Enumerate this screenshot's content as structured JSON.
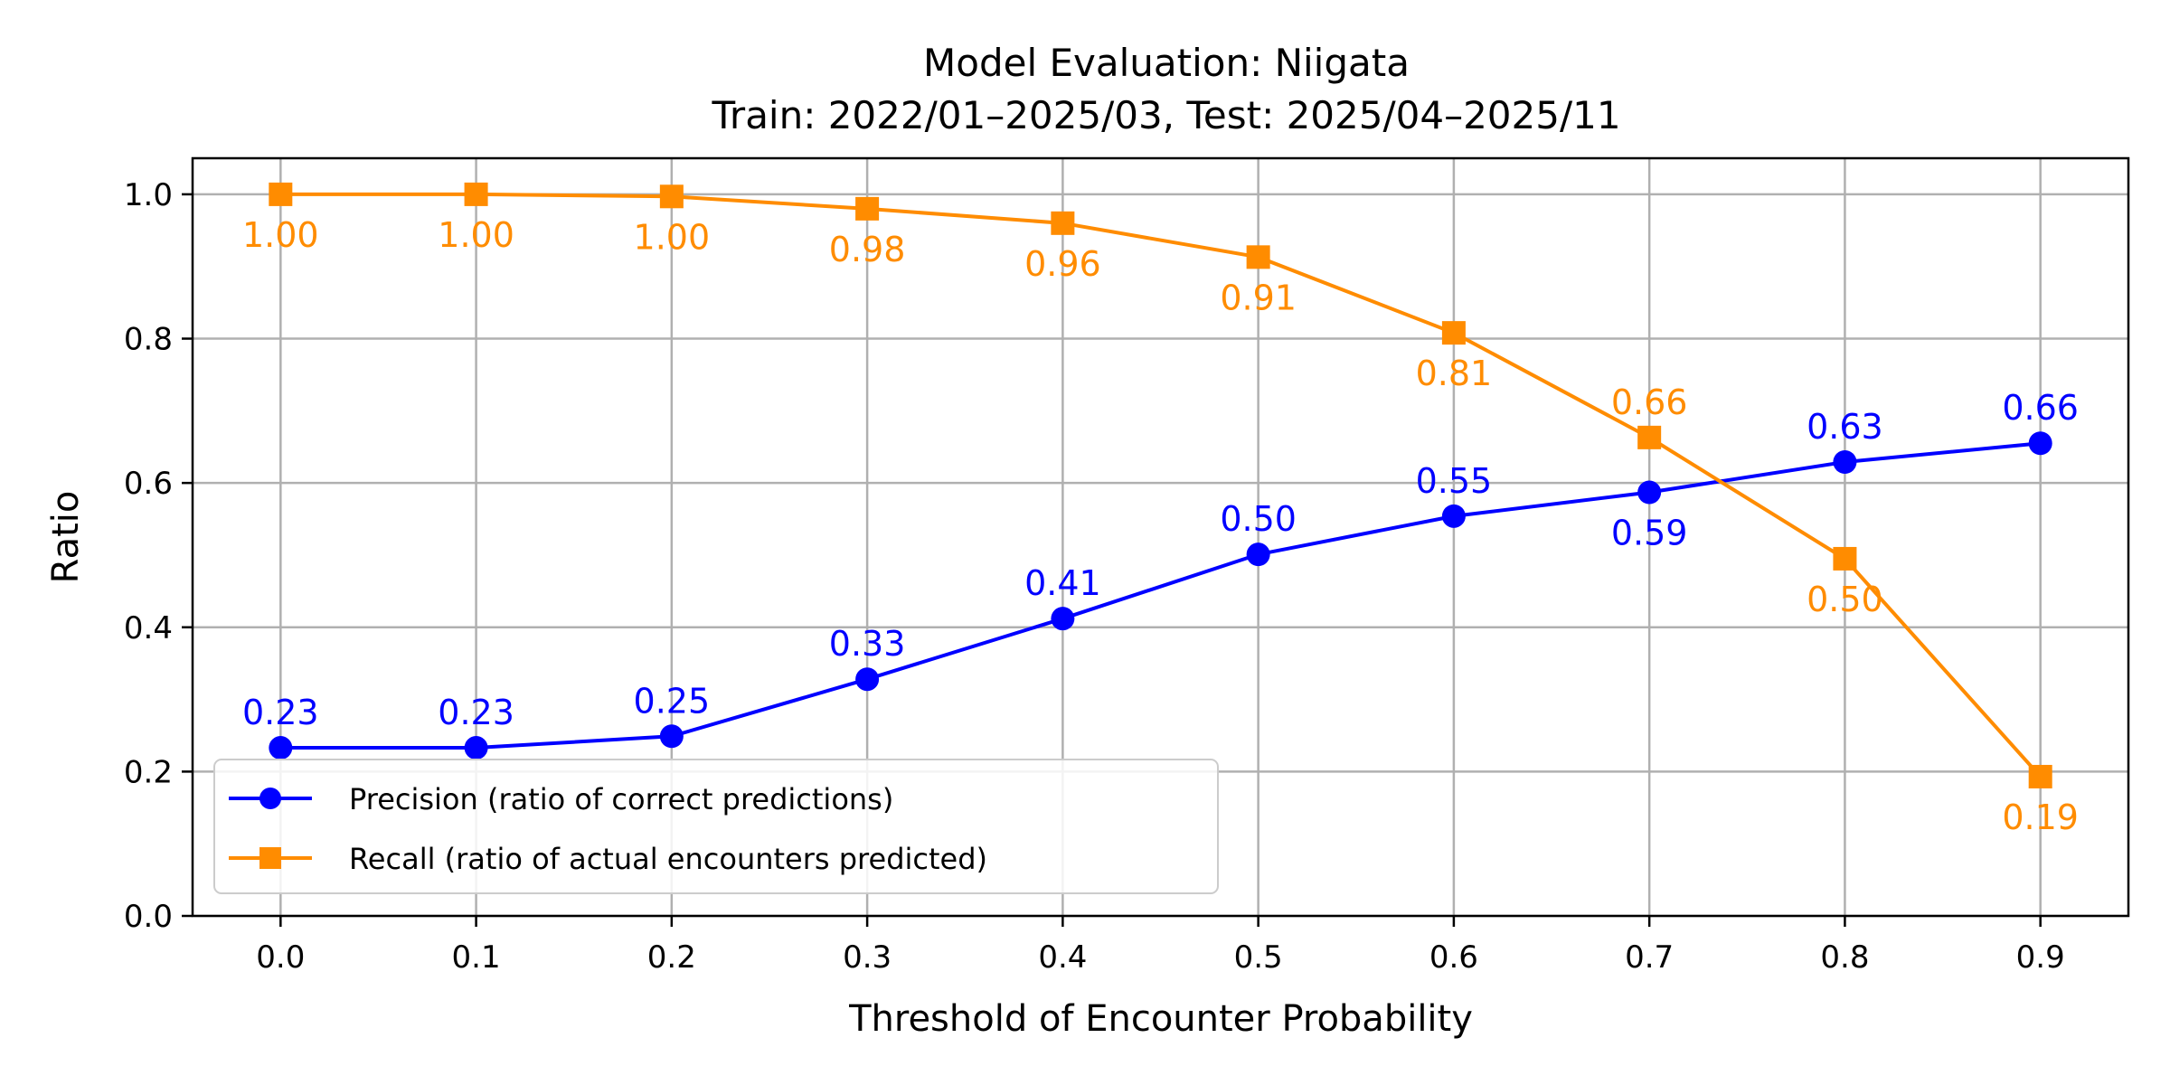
{
  "chart_data": {
    "type": "line",
    "title": [
      "Model Evaluation: Niigata",
      "Train: 2022/01–2025/03, Test: 2025/04–2025/11"
    ],
    "xlabel": "Threshold of Encounter Probability",
    "ylabel": "Ratio",
    "xlim": [
      -0.045,
      0.945
    ],
    "ylim": [
      0.0,
      1.05
    ],
    "grid": true,
    "legend_placement": "lower-left",
    "x": [
      0.0,
      0.1,
      0.2,
      0.3,
      0.4,
      0.5,
      0.6,
      0.7,
      0.8,
      0.9
    ],
    "x_ticks": [
      "0.0",
      "0.1",
      "0.2",
      "0.3",
      "0.4",
      "0.5",
      "0.6",
      "0.7",
      "0.8",
      "0.9"
    ],
    "y_ticks": [
      {
        "v": 0.0,
        "label": "0.0"
      },
      {
        "v": 0.2,
        "label": "0.2"
      },
      {
        "v": 0.4,
        "label": "0.4"
      },
      {
        "v": 0.6,
        "label": "0.6"
      },
      {
        "v": 0.8,
        "label": "0.8"
      },
      {
        "v": 1.0,
        "label": "1.0"
      }
    ],
    "series": [
      {
        "name": "Precision (ratio of correct predictions)",
        "color": "#0000ff",
        "marker": "circle",
        "label_position": "above",
        "values": [
          0.233,
          0.233,
          0.249,
          0.328,
          0.412,
          0.501,
          0.554,
          0.587,
          0.629,
          0.655
        ],
        "labels": [
          "0.23",
          "0.23",
          "0.25",
          "0.33",
          "0.41",
          "0.50",
          "0.55",
          "0.59",
          "0.63",
          "0.66"
        ]
      },
      {
        "name": "Recall (ratio of actual encounters predicted)",
        "color": "#ff8c00",
        "marker": "square",
        "label_position": "below",
        "values": [
          1.0,
          1.0,
          0.997,
          0.98,
          0.96,
          0.913,
          0.808,
          0.663,
          0.495,
          0.193
        ],
        "labels": [
          "1.00",
          "1.00",
          "1.00",
          "0.98",
          "0.96",
          "0.91",
          "0.81",
          "0.66",
          "0.50",
          "0.19"
        ]
      }
    ]
  }
}
